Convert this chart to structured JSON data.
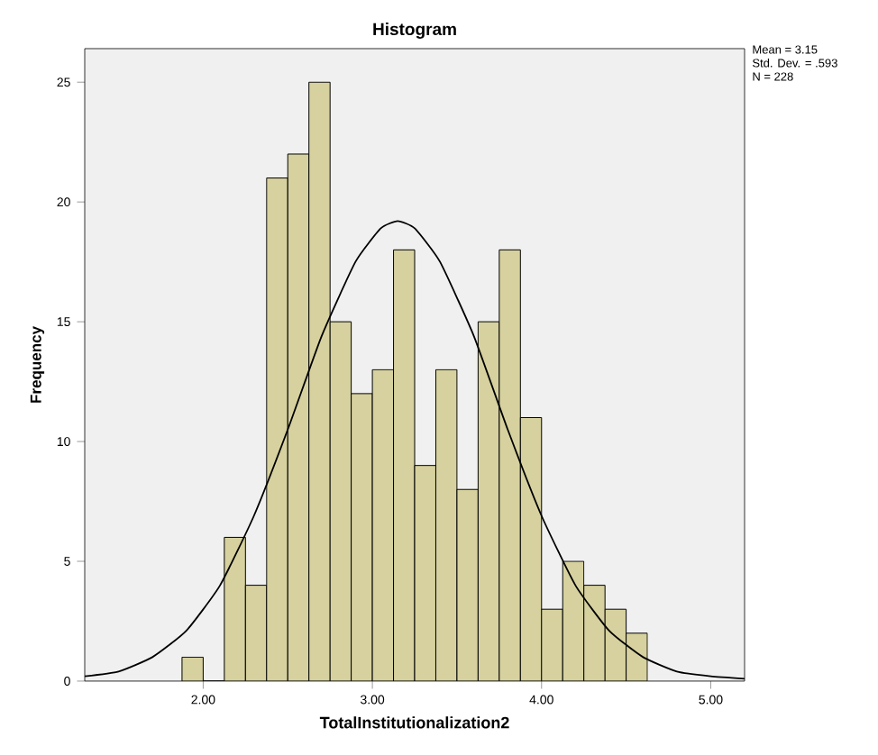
{
  "chart_data": {
    "type": "histogram",
    "title": "Histogram",
    "xlabel": "TotalInstitutionalization2",
    "ylabel": "Frequency",
    "bins": [
      1.875,
      2.0,
      2.125,
      2.25,
      2.375,
      2.5,
      2.625,
      2.75,
      2.875,
      3.0,
      3.125,
      3.25,
      3.375,
      3.5,
      3.625,
      3.75,
      3.875,
      4.0,
      4.125,
      4.25,
      4.375,
      4.5,
      4.625
    ],
    "values": [
      1,
      0,
      6,
      4,
      21,
      22,
      25,
      15,
      12,
      13,
      18,
      9,
      13,
      8,
      15,
      18,
      11,
      3,
      5,
      4,
      3,
      2
    ],
    "color": "#d6d19e",
    "series": [
      {
        "type": "line",
        "color": "#000000",
        "x": [
          1.3,
          1.5,
          1.7,
          1.9,
          2.1,
          2.3,
          2.5,
          2.7,
          2.9,
          3.05,
          3.15,
          3.25,
          3.4,
          3.6,
          3.8,
          4.0,
          4.2,
          4.4,
          4.6,
          4.8,
          5.0,
          5.2
        ],
        "values": [
          0.2,
          0.4,
          1.0,
          2.1,
          4.0,
          6.9,
          10.5,
          14.4,
          17.5,
          18.9,
          19.2,
          18.9,
          17.5,
          14.4,
          10.5,
          6.9,
          4.0,
          2.1,
          1.0,
          0.4,
          0.2,
          0.1
        ]
      }
    ],
    "xlim": [
      1.3,
      5.2
    ],
    "ylim": [
      0,
      26.4
    ],
    "xticks": [
      {
        "value": 2,
        "label": "2.00"
      },
      {
        "value": 3,
        "label": "3.00"
      },
      {
        "value": 4,
        "label": "4.00"
      },
      {
        "value": 5,
        "label": "5.00"
      }
    ],
    "yticks": [
      0,
      5,
      10,
      15,
      20,
      25
    ],
    "grid": false,
    "annotations": [
      "Mean = 3.15",
      "Std. Dev. = .593",
      "N = 228"
    ]
  }
}
